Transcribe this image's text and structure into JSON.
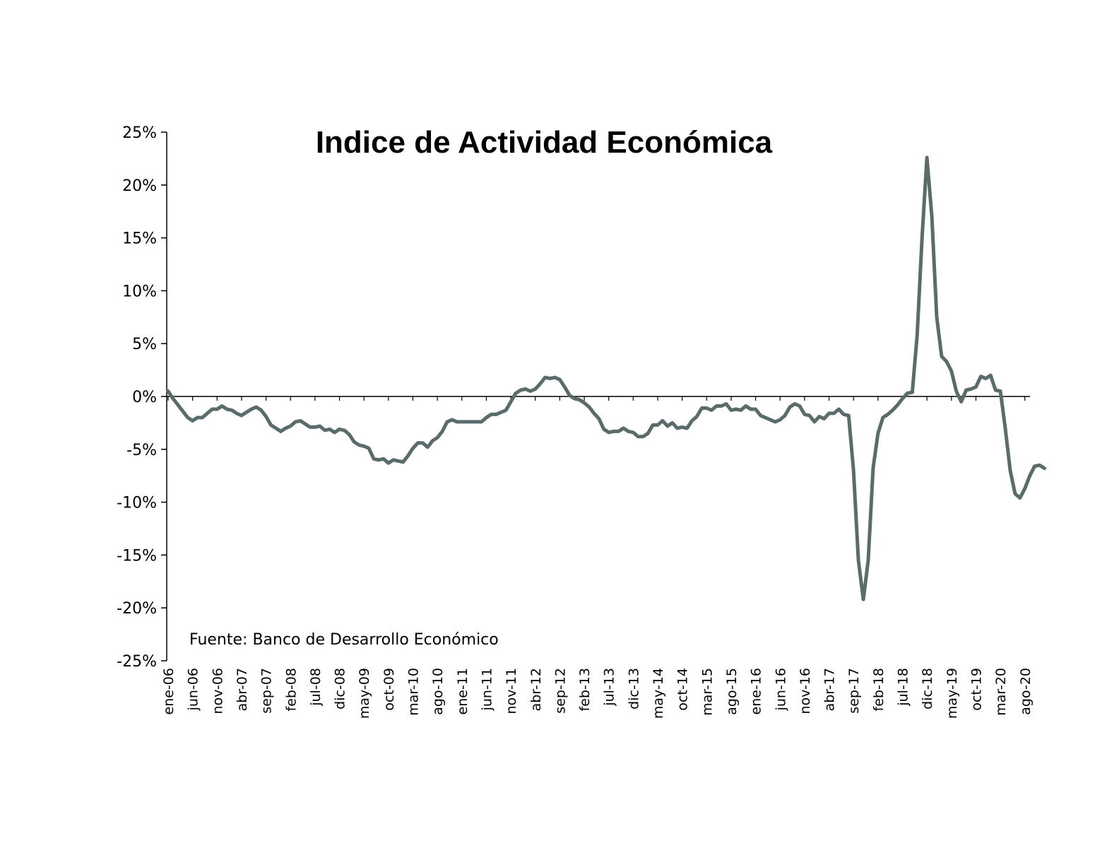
{
  "chart_data": {
    "type": "line",
    "title": "Indice de Actividad Económica",
    "source_note": "Fuente: Banco de Desarrollo Económico",
    "xlabel": "",
    "ylabel": "",
    "ylim": [
      -25,
      25
    ],
    "ytick_values": [
      25,
      20,
      15,
      10,
      5,
      0,
      -5,
      -10,
      -15,
      -20,
      -25
    ],
    "ytick_labels": [
      "25%",
      "20%",
      "15%",
      "10%",
      "5%",
      "0%",
      "-5%",
      "-10%",
      "-15%",
      "-20%",
      "-25%"
    ],
    "xtick_labels": [
      "ene-06",
      "jun-06",
      "nov-06",
      "abr-07",
      "sep-07",
      "feb-08",
      "jul-08",
      "dic-08",
      "may-09",
      "oct-09",
      "mar-10",
      "ago-10",
      "ene-11",
      "jun-11",
      "nov-11",
      "abr-12",
      "sep-12",
      "feb-13",
      "jul-13",
      "dic-13",
      "may-14",
      "oct-14",
      "mar-15",
      "ago-15",
      "ene-16",
      "jun-16",
      "nov-16",
      "abr-17",
      "sep-17",
      "feb-18",
      "jul-18",
      "dic-18",
      "may-19",
      "oct-19",
      "mar-20",
      "ago-20"
    ],
    "grid": false,
    "line_color": "#5a6b6b",
    "series": [
      {
        "name": "",
        "values": [
          0.5,
          -0.2,
          -0.8,
          -1.4,
          -2.0,
          -2.3,
          -2.0,
          -2.0,
          -1.6,
          -1.2,
          -1.2,
          -0.9,
          -1.2,
          -1.3,
          -1.6,
          -1.8,
          -1.5,
          -1.2,
          -1.0,
          -1.3,
          -1.9,
          -2.7,
          -3.0,
          -3.3,
          -3.0,
          -2.8,
          -2.4,
          -2.3,
          -2.6,
          -2.9,
          -2.9,
          -2.8,
          -3.2,
          -3.1,
          -3.4,
          -3.1,
          -3.2,
          -3.6,
          -4.3,
          -4.6,
          -4.7,
          -4.9,
          -5.9,
          -6.0,
          -5.9,
          -6.3,
          -6.0,
          -6.1,
          -6.2,
          -5.6,
          -4.9,
          -4.4,
          -4.4,
          -4.8,
          -4.2,
          -3.9,
          -3.3,
          -2.4,
          -2.2,
          -2.4,
          -2.4,
          -2.4,
          -2.4,
          -2.4,
          -2.4,
          -2.0,
          -1.7,
          -1.7,
          -1.5,
          -1.3,
          -0.5,
          0.3,
          0.6,
          0.7,
          0.5,
          0.7,
          1.2,
          1.8,
          1.7,
          1.8,
          1.6,
          0.9,
          0.1,
          -0.2,
          -0.3,
          -0.6,
          -1.0,
          -1.6,
          -2.1,
          -3.1,
          -3.4,
          -3.3,
          -3.3,
          -3.0,
          -3.3,
          -3.4,
          -3.8,
          -3.8,
          -3.5,
          -2.7,
          -2.7,
          -2.3,
          -2.8,
          -2.5,
          -3.0,
          -2.9,
          -3.0,
          -2.3,
          -1.9,
          -1.1,
          -1.1,
          -1.3,
          -0.9,
          -0.9,
          -0.7,
          -1.3,
          -1.2,
          -1.3,
          -0.9,
          -1.2,
          -1.2,
          -1.8,
          -2.0,
          -2.2,
          -2.4,
          -2.2,
          -1.8,
          -1.0,
          -0.7,
          -0.9,
          -1.7,
          -1.8,
          -2.4,
          -1.9,
          -2.1,
          -1.6,
          -1.6,
          -1.2,
          -1.7,
          -1.8,
          -7.0,
          -15.5,
          -19.2,
          -15.5,
          -6.8,
          -3.5,
          -2.0,
          -1.7,
          -1.3,
          -0.8,
          -0.2,
          0.3,
          0.4,
          5.8,
          15.0,
          22.6,
          17.0,
          7.5,
          3.8,
          3.3,
          2.4,
          0.5,
          -0.5,
          0.6,
          0.7,
          0.9,
          1.9,
          1.7,
          2.0,
          0.6,
          0.5,
          -3.0,
          -7.0,
          -9.2,
          -9.6,
          -8.7,
          -7.5,
          -6.6,
          -6.5,
          -6.8
        ]
      }
    ]
  }
}
